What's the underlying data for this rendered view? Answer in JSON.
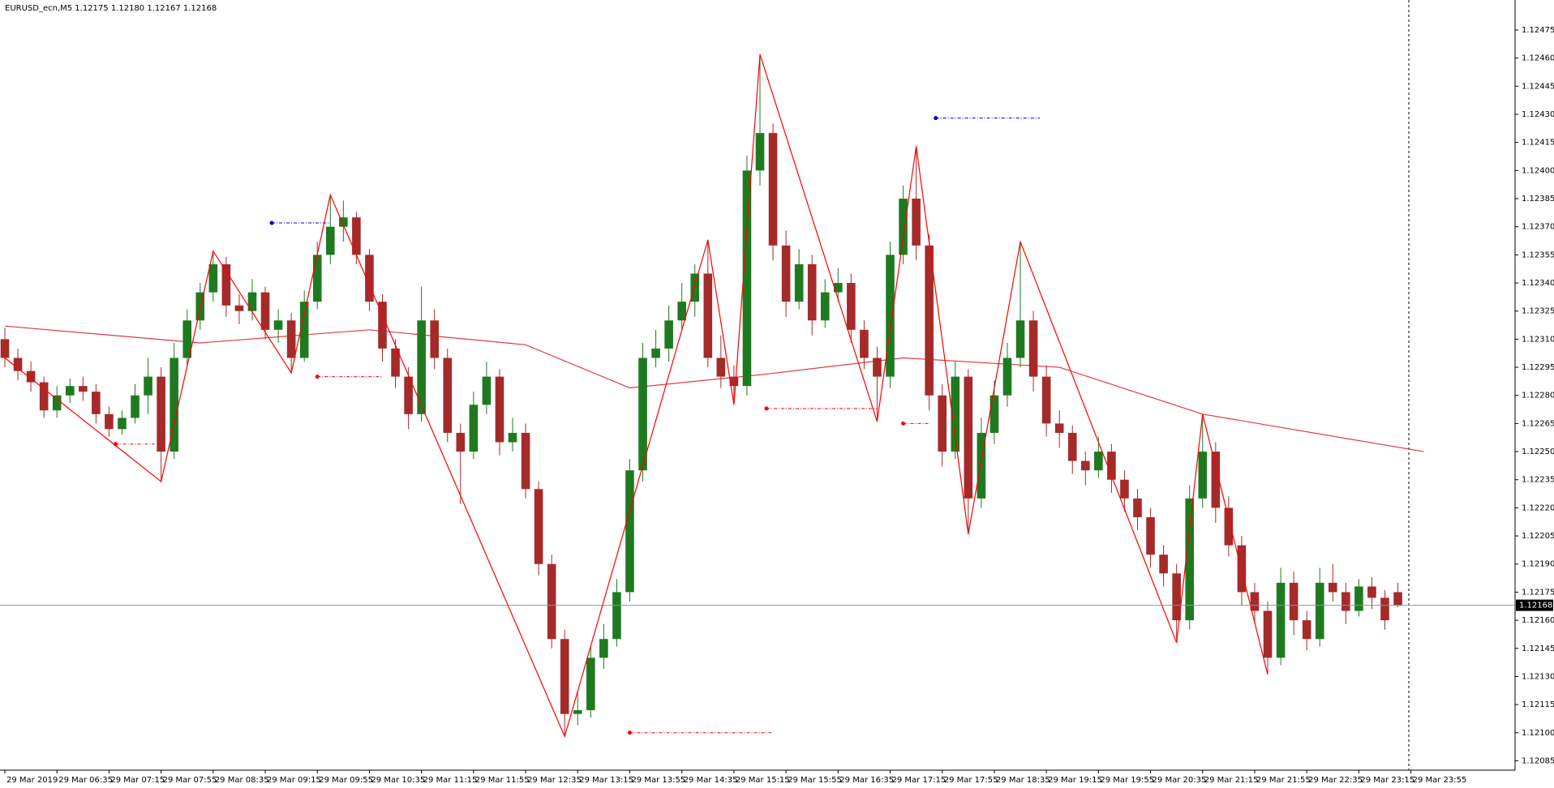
{
  "chart_data": {
    "type": "candlestick",
    "title": "EURUSD_ecn,M5  1.12175 1.12180 1.12167 1.12168",
    "bull_color": "#1f7a1f",
    "bear_color": "#a52a2a",
    "ylim": [
      1.1208,
      1.12491
    ],
    "xlim": [
      0,
      116
    ],
    "yticks": [
      1.12085,
      {
        "value": 1.121,
        "label": "1.12100"
      },
      1.12115,
      {
        "value": 1.1213,
        "label": "1.12130"
      },
      1.12145,
      {
        "value": 1.1216,
        "label": "1.12160"
      },
      1.12175,
      {
        "value": 1.1219,
        "label": "1.12190"
      },
      1.12205,
      {
        "value": 1.1222,
        "label": "1.12220"
      },
      1.12235,
      {
        "value": 1.1225,
        "label": "1.12250"
      },
      1.12265,
      {
        "value": 1.1228,
        "label": "1.12280"
      },
      1.12295,
      {
        "value": 1.1231,
        "label": "1.12310"
      },
      1.12325,
      {
        "value": 1.1234,
        "label": "1.12340"
      },
      1.12355,
      {
        "value": 1.1237,
        "label": "1.12370"
      },
      1.12385,
      {
        "value": 1.124,
        "label": "1.12400"
      },
      1.12415,
      {
        "value": 1.1243,
        "label": "1.12430"
      },
      1.12445,
      {
        "value": 1.1246,
        "label": "1.12460"
      },
      1.12475
    ],
    "xticks": [
      {
        "value": 0,
        "label": "29 Mar 2019"
      },
      {
        "value": 4,
        "label": "29 Mar 06:35"
      },
      {
        "value": 8,
        "label": "29 Mar 07:15"
      },
      {
        "value": 12,
        "label": "29 Mar 07:55"
      },
      {
        "value": 16,
        "label": "29 Mar 08:35"
      },
      {
        "value": 20,
        "label": "29 Mar 09:15"
      },
      {
        "value": 24,
        "label": "29 Mar 09:55"
      },
      {
        "value": 28,
        "label": "29 Mar 10:35"
      },
      {
        "value": 32,
        "label": "29 Mar 11:15"
      },
      {
        "value": 36,
        "label": "29 Mar 11:55"
      },
      {
        "value": 40,
        "label": "29 Mar 12:35"
      },
      {
        "value": 44,
        "label": "29 Mar 13:15"
      },
      {
        "value": 48,
        "label": "29 Mar 13:55"
      },
      {
        "value": 52,
        "label": "29 Mar 14:35"
      },
      {
        "value": 56,
        "label": "29 Mar 15:15"
      },
      {
        "value": 60,
        "label": "29 Mar 15:55"
      },
      {
        "value": 64,
        "label": "29 Mar 16:35"
      },
      {
        "value": 68,
        "label": "29 Mar 17:15"
      },
      {
        "value": 72,
        "label": "29 Mar 17:55"
      },
      {
        "value": 76,
        "label": "29 Mar 18:35"
      },
      {
        "value": 80,
        "label": "29 Mar 19:15"
      },
      {
        "value": 84,
        "label": "29 Mar 19:55"
      },
      {
        "value": 88,
        "label": "29 Mar 20:35"
      },
      {
        "value": 92,
        "label": "29 Mar 21:15"
      },
      {
        "value": 96,
        "label": "29 Mar 21:55"
      },
      {
        "value": 100,
        "label": "29 Mar 22:35"
      },
      {
        "value": 104,
        "label": "29 Mar 23:15"
      },
      {
        "value": 108,
        "label": "29 Mar 23:55"
      }
    ],
    "last_price": 1.12168,
    "ohlc": [
      [
        1.1231,
        1.12316,
        1.12295,
        1.123
      ],
      [
        1.123,
        1.12305,
        1.12288,
        1.12293
      ],
      [
        1.12293,
        1.12298,
        1.12282,
        1.12287
      ],
      [
        1.12287,
        1.1229,
        1.12268,
        1.12272
      ],
      [
        1.12272,
        1.12285,
        1.12268,
        1.1228
      ],
      [
        1.1228,
        1.12289,
        1.12276,
        1.12285
      ],
      [
        1.12285,
        1.1229,
        1.12277,
        1.12282
      ],
      [
        1.12282,
        1.12286,
        1.12265,
        1.1227
      ],
      [
        1.1227,
        1.12274,
        1.12258,
        1.12262
      ],
      [
        1.12262,
        1.12272,
        1.12259,
        1.12268
      ],
      [
        1.12268,
        1.12286,
        1.12265,
        1.1228
      ],
      [
        1.1228,
        1.123,
        1.1227,
        1.1229
      ],
      [
        1.1229,
        1.12295,
        1.12234,
        1.1225
      ],
      [
        1.1225,
        1.12308,
        1.12246,
        1.123
      ],
      [
        1.123,
        1.12326,
        1.12296,
        1.1232
      ],
      [
        1.1232,
        1.1234,
        1.12315,
        1.12335
      ],
      [
        1.12335,
        1.12357,
        1.1233,
        1.1235
      ],
      [
        1.1235,
        1.12354,
        1.12322,
        1.12328
      ],
      [
        1.12328,
        1.12334,
        1.12318,
        1.12325
      ],
      [
        1.12325,
        1.12342,
        1.1232,
        1.12335
      ],
      [
        1.12335,
        1.12338,
        1.1231,
        1.12315
      ],
      [
        1.12315,
        1.12326,
        1.12308,
        1.1232
      ],
      [
        1.1232,
        1.12324,
        1.12292,
        1.123
      ],
      [
        1.123,
        1.12336,
        1.12298,
        1.1233
      ],
      [
        1.1233,
        1.12362,
        1.12326,
        1.12355
      ],
      [
        1.12355,
        1.12387,
        1.1235,
        1.1237
      ],
      [
        1.1237,
        1.12384,
        1.12362,
        1.12375
      ],
      [
        1.12375,
        1.12378,
        1.1235,
        1.12355
      ],
      [
        1.12355,
        1.12358,
        1.12325,
        1.1233
      ],
      [
        1.1233,
        1.12334,
        1.12298,
        1.12305
      ],
      [
        1.12305,
        1.1231,
        1.12284,
        1.1229
      ],
      [
        1.1229,
        1.12295,
        1.12262,
        1.1227
      ],
      [
        1.1227,
        1.12338,
        1.12266,
        1.1232
      ],
      [
        1.1232,
        1.12326,
        1.12294,
        1.123
      ],
      [
        1.123,
        1.12305,
        1.12255,
        1.1226
      ],
      [
        1.1226,
        1.12265,
        1.12222,
        1.1225
      ],
      [
        1.1225,
        1.12282,
        1.12246,
        1.12275
      ],
      [
        1.12275,
        1.12298,
        1.1227,
        1.1229
      ],
      [
        1.1229,
        1.12294,
        1.12248,
        1.12255
      ],
      [
        1.12255,
        1.12268,
        1.1225,
        1.1226
      ],
      [
        1.1226,
        1.12265,
        1.12225,
        1.1223
      ],
      [
        1.1223,
        1.12234,
        1.12184,
        1.1219
      ],
      [
        1.1219,
        1.12195,
        1.12145,
        1.1215
      ],
      [
        1.1215,
        1.12155,
        1.12098,
        1.1211
      ],
      [
        1.1211,
        1.12122,
        1.12104,
        1.12112
      ],
      [
        1.12112,
        1.12146,
        1.12108,
        1.1214
      ],
      [
        1.1214,
        1.12158,
        1.12134,
        1.1215
      ],
      [
        1.1215,
        1.12182,
        1.12146,
        1.12175
      ],
      [
        1.12175,
        1.12246,
        1.1217,
        1.1224
      ],
      [
        1.1224,
        1.12308,
        1.12234,
        1.123
      ],
      [
        1.123,
        1.12315,
        1.12295,
        1.12305
      ],
      [
        1.12305,
        1.12328,
        1.12298,
        1.1232
      ],
      [
        1.1232,
        1.1234,
        1.12315,
        1.1233
      ],
      [
        1.1233,
        1.1235,
        1.12322,
        1.12345
      ],
      [
        1.12345,
        1.12363,
        1.12295,
        1.123
      ],
      [
        1.123,
        1.12312,
        1.12284,
        1.1229
      ],
      [
        1.1229,
        1.12296,
        1.12275,
        1.12285
      ],
      [
        1.12285,
        1.12408,
        1.1228,
        1.124
      ],
      [
        1.124,
        1.12462,
        1.12392,
        1.1242
      ],
      [
        1.1242,
        1.12425,
        1.12352,
        1.1236
      ],
      [
        1.1236,
        1.12368,
        1.12322,
        1.1233
      ],
      [
        1.1233,
        1.12358,
        1.12326,
        1.1235
      ],
      [
        1.1235,
        1.12355,
        1.12312,
        1.1232
      ],
      [
        1.1232,
        1.12342,
        1.12316,
        1.12335
      ],
      [
        1.12335,
        1.12348,
        1.1233,
        1.1234
      ],
      [
        1.1234,
        1.12345,
        1.12308,
        1.12315
      ],
      [
        1.12315,
        1.1232,
        1.12294,
        1.123
      ],
      [
        1.123,
        1.12306,
        1.12266,
        1.1229
      ],
      [
        1.1229,
        1.12362,
        1.12284,
        1.12355
      ],
      [
        1.12355,
        1.12392,
        1.1235,
        1.12385
      ],
      [
        1.12385,
        1.12413,
        1.12352,
        1.1236
      ],
      [
        1.1236,
        1.12366,
        1.12272,
        1.1228
      ],
      [
        1.1228,
        1.12286,
        1.12242,
        1.1225
      ],
      [
        1.1225,
        1.12298,
        1.12246,
        1.1229
      ],
      [
        1.1229,
        1.12294,
        1.12206,
        1.12225
      ],
      [
        1.12225,
        1.12268,
        1.1222,
        1.1226
      ],
      [
        1.1226,
        1.12288,
        1.12254,
        1.1228
      ],
      [
        1.1228,
        1.12308,
        1.12274,
        1.123
      ],
      [
        1.123,
        1.12362,
        1.12295,
        1.1232
      ],
      [
        1.1232,
        1.12325,
        1.12282,
        1.1229
      ],
      [
        1.1229,
        1.12296,
        1.12258,
        1.12265
      ],
      [
        1.12265,
        1.12272,
        1.12252,
        1.1226
      ],
      [
        1.1226,
        1.12264,
        1.12238,
        1.12245
      ],
      [
        1.12245,
        1.1225,
        1.12232,
        1.1224
      ],
      [
        1.1224,
        1.12258,
        1.12236,
        1.1225
      ],
      [
        1.1225,
        1.12254,
        1.12228,
        1.12235
      ],
      [
        1.12235,
        1.1224,
        1.12218,
        1.12225
      ],
      [
        1.12225,
        1.1223,
        1.12208,
        1.12215
      ],
      [
        1.12215,
        1.1222,
        1.12188,
        1.12195
      ],
      [
        1.12195,
        1.122,
        1.12178,
        1.12185
      ],
      [
        1.12185,
        1.1219,
        1.12148,
        1.1216
      ],
      [
        1.1216,
        1.12232,
        1.12155,
        1.12225
      ],
      [
        1.12225,
        1.1227,
        1.1222,
        1.1225
      ],
      [
        1.1225,
        1.12255,
        1.12212,
        1.1222
      ],
      [
        1.1222,
        1.12226,
        1.12194,
        1.122
      ],
      [
        1.122,
        1.12205,
        1.12168,
        1.12175
      ],
      [
        1.12175,
        1.1218,
        1.12158,
        1.12165
      ],
      [
        1.12165,
        1.1217,
        1.12131,
        1.1214
      ],
      [
        1.1214,
        1.12188,
        1.12136,
        1.1218
      ],
      [
        1.1218,
        1.12186,
        1.12152,
        1.1216
      ],
      [
        1.1216,
        1.12165,
        1.12144,
        1.1215
      ],
      [
        1.1215,
        1.12188,
        1.12146,
        1.1218
      ],
      [
        1.1218,
        1.1219,
        1.1217,
        1.12175
      ],
      [
        1.12175,
        1.1218,
        1.12158,
        1.12165
      ],
      [
        1.12165,
        1.12182,
        1.12162,
        1.12178
      ],
      [
        1.12178,
        1.12183,
        1.12166,
        1.12172
      ],
      [
        1.12172,
        1.12176,
        1.12155,
        1.1216
      ],
      [
        1.12175,
        1.1218,
        1.12167,
        1.12168
      ]
    ],
    "ma": {
      "color": "#e03a48",
      "x": [
        0,
        15,
        28,
        40,
        48,
        58,
        69,
        81,
        92,
        109
      ],
      "values": [
        1.12317,
        1.12308,
        1.12315,
        1.12307,
        1.12284,
        1.12291,
        1.123,
        1.12295,
        1.1227,
        1.1225
      ]
    },
    "zigzag": {
      "color": "#ff0000",
      "x": [
        0,
        12,
        16,
        22,
        25,
        43,
        54,
        56,
        58,
        67,
        70,
        74,
        78,
        90,
        92,
        97
      ],
      "values": [
        1.123,
        1.12234,
        1.12357,
        1.12292,
        1.12387,
        1.12098,
        1.12363,
        1.12275,
        1.12462,
        1.12266,
        1.12413,
        1.12206,
        1.12362,
        1.12148,
        1.1227,
        1.12131
      ]
    },
    "levels": [
      {
        "value": 1.12372,
        "from": 20.5,
        "to": 25,
        "color": "#0000cc"
      },
      {
        "value": 1.1229,
        "from": 24,
        "to": 29,
        "color": "#ff0000"
      },
      {
        "value": 1.12254,
        "from": 8.5,
        "to": 11.5,
        "color": "#ff0000"
      },
      {
        "value": 1.121,
        "from": 48,
        "to": 59,
        "color": "#ff0000"
      },
      {
        "value": 1.12273,
        "from": 58.5,
        "to": 67,
        "color": "#ff0000"
      },
      {
        "value": 1.12265,
        "from": 69,
        "to": 71,
        "color": "#ff0000"
      },
      {
        "value": 1.12428,
        "from": 71.5,
        "to": 79.5,
        "color": "#0000cc"
      }
    ]
  }
}
